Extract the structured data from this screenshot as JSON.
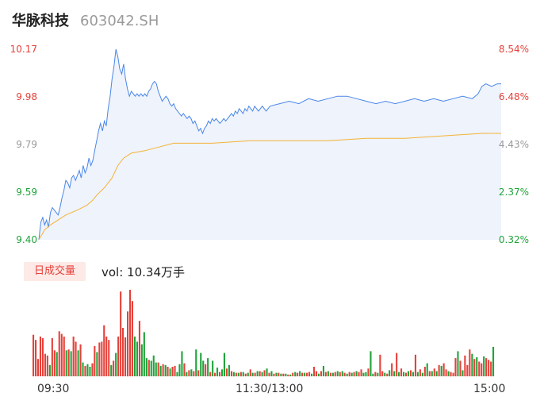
{
  "header": {
    "name": "华脉科技",
    "code": "603042.SH"
  },
  "colors": {
    "up": "#e5413a",
    "down": "#1fa33a",
    "neutral": "#999999",
    "price_line": "#4a86e8",
    "avg_line": "#f5b335",
    "area_fill": "#eef3fc"
  },
  "price_axis": {
    "left": [
      {
        "text": "10.17",
        "value": 10.17,
        "color": "#e5413a"
      },
      {
        "text": "9.98",
        "value": 9.98,
        "color": "#e5413a"
      },
      {
        "text": "9.79",
        "value": 9.79,
        "color": "#999999"
      },
      {
        "text": "9.59",
        "value": 9.59,
        "color": "#1fa33a"
      },
      {
        "text": "9.40",
        "value": 9.4,
        "color": "#1fa33a"
      }
    ],
    "right": [
      {
        "text": "8.54%",
        "color": "#e5413a"
      },
      {
        "text": "6.48%",
        "color": "#e5413a"
      },
      {
        "text": "4.43%",
        "color": "#999999"
      },
      {
        "text": "2.37%",
        "color": "#1fa33a"
      },
      {
        "text": "0.32%",
        "color": "#1fa33a"
      }
    ]
  },
  "volume_section": {
    "badge": "日成交量",
    "label": "vol: 10.34万手"
  },
  "time_axis": [
    "09:30",
    "11:30/13:00",
    "15:00"
  ],
  "chart_data": {
    "type": "line",
    "title": "",
    "x_range": [
      0,
      240
    ],
    "ylim": [
      9.4,
      10.17
    ],
    "series": [
      {
        "kind": "price",
        "points": [
          [
            0,
            9.4
          ],
          [
            1,
            9.47
          ],
          [
            2,
            9.49
          ],
          [
            3,
            9.46
          ],
          [
            4,
            9.48
          ],
          [
            5,
            9.45
          ],
          [
            6,
            9.51
          ],
          [
            7,
            9.53
          ],
          [
            8,
            9.52
          ],
          [
            9,
            9.51
          ],
          [
            10,
            9.5
          ],
          [
            11,
            9.53
          ],
          [
            12,
            9.57
          ],
          [
            13,
            9.6
          ],
          [
            14,
            9.64
          ],
          [
            15,
            9.63
          ],
          [
            16,
            9.61
          ],
          [
            17,
            9.65
          ],
          [
            18,
            9.66
          ],
          [
            19,
            9.64
          ],
          [
            20,
            9.66
          ],
          [
            21,
            9.68
          ],
          [
            22,
            9.65
          ],
          [
            23,
            9.7
          ],
          [
            24,
            9.67
          ],
          [
            25,
            9.69
          ],
          [
            26,
            9.73
          ],
          [
            27,
            9.7
          ],
          [
            28,
            9.72
          ],
          [
            29,
            9.76
          ],
          [
            30,
            9.8
          ],
          [
            31,
            9.84
          ],
          [
            32,
            9.87
          ],
          [
            33,
            9.84
          ],
          [
            34,
            9.88
          ],
          [
            35,
            9.86
          ],
          [
            36,
            9.93
          ],
          [
            37,
            9.98
          ],
          [
            38,
            10.05
          ],
          [
            39,
            10.1
          ],
          [
            40,
            10.17
          ],
          [
            41,
            10.14
          ],
          [
            42,
            10.09
          ],
          [
            43,
            10.07
          ],
          [
            44,
            10.11
          ],
          [
            45,
            10.05
          ],
          [
            46,
            10.01
          ],
          [
            47,
            9.98
          ],
          [
            48,
            10.0
          ],
          [
            49,
            9.99
          ],
          [
            50,
            9.98
          ],
          [
            51,
            9.99
          ],
          [
            52,
            9.98
          ],
          [
            53,
            9.99
          ],
          [
            54,
            9.98
          ],
          [
            55,
            9.99
          ],
          [
            56,
            9.98
          ],
          [
            57,
            10.0
          ],
          [
            58,
            10.01
          ],
          [
            59,
            10.03
          ],
          [
            60,
            10.04
          ],
          [
            61,
            10.03
          ],
          [
            62,
            10.0
          ],
          [
            63,
            9.98
          ],
          [
            64,
            9.96
          ],
          [
            65,
            9.97
          ],
          [
            66,
            9.98
          ],
          [
            67,
            9.97
          ],
          [
            68,
            9.95
          ],
          [
            69,
            9.94
          ],
          [
            70,
            9.95
          ],
          [
            71,
            9.93
          ],
          [
            72,
            9.92
          ],
          [
            73,
            9.91
          ],
          [
            74,
            9.9
          ],
          [
            75,
            9.91
          ],
          [
            76,
            9.9
          ],
          [
            77,
            9.89
          ],
          [
            78,
            9.9
          ],
          [
            79,
            9.89
          ],
          [
            80,
            9.87
          ],
          [
            81,
            9.88
          ],
          [
            82,
            9.86
          ],
          [
            83,
            9.84
          ],
          [
            84,
            9.85
          ],
          [
            85,
            9.83
          ],
          [
            86,
            9.85
          ],
          [
            87,
            9.86
          ],
          [
            88,
            9.88
          ],
          [
            89,
            9.87
          ],
          [
            90,
            9.89
          ],
          [
            91,
            9.88
          ],
          [
            92,
            9.89
          ],
          [
            93,
            9.88
          ],
          [
            94,
            9.87
          ],
          [
            95,
            9.88
          ],
          [
            96,
            9.89
          ],
          [
            97,
            9.88
          ],
          [
            98,
            9.89
          ],
          [
            99,
            9.9
          ],
          [
            100,
            9.91
          ],
          [
            101,
            9.9
          ],
          [
            102,
            9.92
          ],
          [
            103,
            9.91
          ],
          [
            104,
            9.93
          ],
          [
            105,
            9.92
          ],
          [
            106,
            9.91
          ],
          [
            107,
            9.93
          ],
          [
            108,
            9.92
          ],
          [
            109,
            9.94
          ],
          [
            110,
            9.93
          ],
          [
            111,
            9.92
          ],
          [
            112,
            9.94
          ],
          [
            113,
            9.93
          ],
          [
            114,
            9.92
          ],
          [
            115,
            9.93
          ],
          [
            116,
            9.94
          ],
          [
            117,
            9.93
          ],
          [
            118,
            9.92
          ],
          [
            119,
            9.93
          ],
          [
            120,
            9.94
          ],
          [
            125,
            9.95
          ],
          [
            130,
            9.96
          ],
          [
            135,
            9.95
          ],
          [
            140,
            9.97
          ],
          [
            145,
            9.96
          ],
          [
            150,
            9.97
          ],
          [
            155,
            9.98
          ],
          [
            160,
            9.98
          ],
          [
            165,
            9.97
          ],
          [
            170,
            9.96
          ],
          [
            175,
            9.95
          ],
          [
            180,
            9.96
          ],
          [
            185,
            9.95
          ],
          [
            190,
            9.96
          ],
          [
            195,
            9.97
          ],
          [
            200,
            9.96
          ],
          [
            205,
            9.97
          ],
          [
            210,
            9.96
          ],
          [
            215,
            9.97
          ],
          [
            220,
            9.98
          ],
          [
            225,
            9.97
          ],
          [
            228,
            9.99
          ],
          [
            230,
            10.02
          ],
          [
            232,
            10.03
          ],
          [
            235,
            10.02
          ],
          [
            238,
            10.03
          ],
          [
            240,
            10.03
          ]
        ]
      },
      {
        "kind": "average",
        "points": [
          [
            0,
            9.4
          ],
          [
            3,
            9.44
          ],
          [
            6,
            9.46
          ],
          [
            10,
            9.48
          ],
          [
            14,
            9.5
          ],
          [
            20,
            9.52
          ],
          [
            25,
            9.54
          ],
          [
            28,
            9.56
          ],
          [
            30,
            9.58
          ],
          [
            34,
            9.61
          ],
          [
            38,
            9.65
          ],
          [
            41,
            9.7
          ],
          [
            44,
            9.73
          ],
          [
            48,
            9.75
          ],
          [
            55,
            9.76
          ],
          [
            60,
            9.77
          ],
          [
            70,
            9.79
          ],
          [
            90,
            9.79
          ],
          [
            110,
            9.8
          ],
          [
            130,
            9.8
          ],
          [
            150,
            9.8
          ],
          [
            170,
            9.81
          ],
          [
            190,
            9.81
          ],
          [
            210,
            9.82
          ],
          [
            230,
            9.83
          ],
          [
            240,
            9.83
          ]
        ]
      }
    ],
    "volume": {
      "values": [
        4.8,
        4.2,
        2.0,
        4.6,
        4.4,
        2.6,
        2.4,
        1.3,
        4.4,
        3.0,
        2.8,
        5.2,
        4.9,
        4.6,
        3.0,
        3.1,
        2.9,
        4.6,
        4.0,
        3.0,
        3.7,
        1.6,
        1.2,
        1.4,
        1.1,
        1.5,
        3.5,
        2.8,
        3.9,
        4.0,
        5.9,
        4.6,
        4.2,
        1.3,
        1.8,
        2.7,
        4.6,
        9.8,
        5.6,
        4.5,
        7.5,
        10.0,
        8.7,
        4.6,
        4.0,
        6.4,
        3.7,
        5.1,
        2.1,
        1.9,
        1.8,
        2.4,
        1.6,
        1.6,
        1.2,
        1.4,
        1.3,
        1.1,
        0.9,
        1.1,
        1.2,
        0.5,
        1.4,
        2.9,
        1.5,
        0.5,
        0.7,
        0.8,
        0.6,
        3.1,
        0.7,
        2.7,
        1.8,
        1.4,
        2.1,
        0.5,
        1.8,
        0.4,
        1.0,
        0.5,
        0.8,
        2.7,
        0.9,
        1.3,
        0.6,
        0.5,
        0.4,
        0.4,
        0.5,
        0.5,
        0.3,
        0.4,
        0.8,
        0.4,
        0.4,
        0.6,
        0.6,
        0.5,
        0.7,
        0.9,
        0.4,
        0.6,
        0.3,
        0.4,
        0.4,
        0.3,
        0.3,
        0.3,
        0.2,
        0.2,
        0.4,
        0.5,
        0.4,
        0.6,
        0.4,
        0.4,
        0.4,
        0.5,
        0.3,
        1.1,
        0.6,
        0.3,
        0.6,
        1.2,
        0.5,
        0.6,
        0.4,
        0.4,
        0.5,
        0.6,
        0.5,
        0.6,
        0.4,
        0.3,
        0.5,
        0.4,
        0.5,
        0.6,
        0.5,
        0.8,
        0.4,
        0.5,
        0.9,
        2.9,
        0.3,
        0.5,
        0.4,
        2.5,
        0.6,
        0.4,
        0.3,
        0.7,
        1.5,
        0.6,
        2.7,
        0.5,
        0.9,
        0.5,
        0.4,
        0.6,
        0.7,
        0.5,
        2.5,
        0.5,
        0.8,
        0.4,
        1.1,
        1.5,
        0.6,
        0.6,
        0.9,
        0.6,
        1.3,
        1.2,
        1.5,
        0.8,
        0.6,
        0.5,
        0.4,
        2.1,
        2.9,
        1.8,
        0.7,
        2.4,
        1.3,
        3.1,
        2.6,
        2.0,
        2.2,
        1.7,
        1.5,
        2.3,
        2.1,
        1.9,
        1.7,
        3.4
      ],
      "colors": [
        "up",
        "up",
        "up",
        "up",
        "up",
        "up",
        "up",
        "down",
        "up",
        "up",
        "down",
        "up",
        "up",
        "up",
        "down",
        "up",
        "down",
        "up",
        "up",
        "down",
        "up",
        "down",
        "up",
        "down",
        "down",
        "up",
        "up",
        "down",
        "up",
        "up",
        "up",
        "up",
        "up",
        "down",
        "up",
        "down",
        "up",
        "up",
        "up",
        "up",
        "up",
        "up",
        "up",
        "down",
        "down",
        "up",
        "down",
        "down",
        "down",
        "up",
        "down",
        "down",
        "down",
        "up",
        "down",
        "up",
        "down",
        "up",
        "down",
        "up",
        "up",
        "down",
        "down",
        "down",
        "up",
        "down",
        "up",
        "down",
        "up",
        "down",
        "up",
        "down",
        "down",
        "up",
        "down",
        "up",
        "down",
        "up",
        "down",
        "up",
        "down",
        "down",
        "up",
        "down",
        "up",
        "down",
        "up",
        "down",
        "up",
        "down",
        "up",
        "down",
        "up",
        "down",
        "up",
        "down",
        "up",
        "down",
        "up",
        "down",
        "up",
        "down",
        "up",
        "down",
        "up",
        "down",
        "up",
        "down",
        "up",
        "down",
        "up",
        "down",
        "up",
        "down",
        "up",
        "down",
        "up",
        "up",
        "down",
        "up",
        "up",
        "down",
        "up",
        "down",
        "up",
        "down",
        "up",
        "down",
        "up",
        "down",
        "up",
        "down",
        "up",
        "down",
        "up",
        "down",
        "up",
        "down",
        "up",
        "up",
        "down",
        "down",
        "up",
        "down",
        "down",
        "up",
        "down",
        "up",
        "up",
        "down",
        "up",
        "down",
        "up",
        "down",
        "up",
        "down",
        "up",
        "down",
        "up",
        "down",
        "up",
        "down",
        "up",
        "down",
        "up",
        "down",
        "up",
        "down",
        "up",
        "down",
        "up",
        "down",
        "up",
        "down",
        "up",
        "up",
        "down",
        "up",
        "up",
        "up",
        "down",
        "up",
        "down",
        "up",
        "up",
        "up",
        "down",
        "up",
        "down",
        "up",
        "up",
        "down",
        "up",
        "up",
        "up",
        "down",
        "up",
        "down",
        "down"
      ]
    }
  }
}
